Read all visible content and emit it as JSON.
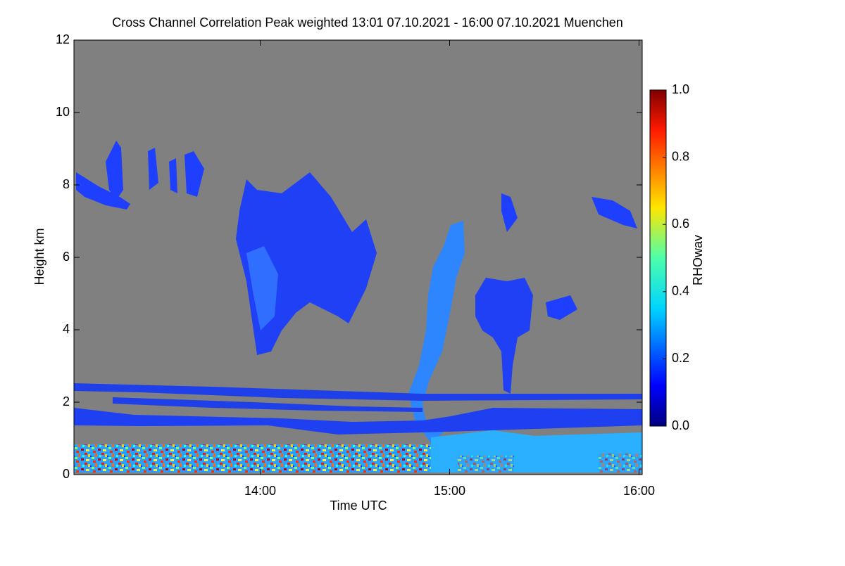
{
  "chart_data": {
    "type": "heatmap",
    "title": "Cross Channel Correlation Peak weighted   13:01 07.10.2021 - 16:00 07.10.2021 Muenchen",
    "x_label": "Time UTC",
    "y_label": "Height km",
    "xlim": [
      13.0167,
      16.0167
    ],
    "xticks": [
      {
        "value": 14,
        "label": "14:00"
      },
      {
        "value": 15,
        "label": "15:00"
      },
      {
        "value": 16,
        "label": "16:00"
      }
    ],
    "ylim": [
      0,
      12
    ],
    "yticks": [
      0,
      2,
      4,
      6,
      8,
      10,
      12
    ],
    "colorbar": {
      "label": "RHOwav",
      "colormap": "jet",
      "lim": [
        0,
        1
      ],
      "ticks": [
        {
          "value": 0,
          "label": "0.0"
        },
        0.2,
        0.4,
        0.6,
        0.8,
        {
          "value": 1,
          "label": "1.0"
        }
      ]
    }
  }
}
